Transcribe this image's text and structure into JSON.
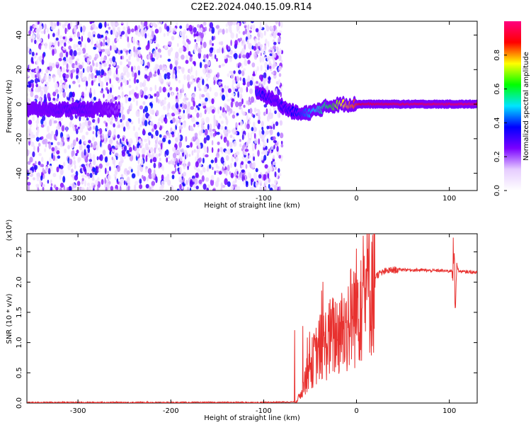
{
  "title": "C2E2.2024.040.15.09.R14",
  "chart_data": [
    {
      "type": "heatmap",
      "title": "",
      "xlabel": "Height of straight line (km)",
      "ylabel": "Frequency (Hz)",
      "xlim": [
        -355,
        130
      ],
      "ylim": [
        -50,
        48
      ],
      "xticks": [
        -300,
        -200,
        -100,
        0,
        100
      ],
      "yticks": [
        -40,
        -20,
        0,
        20,
        40
      ],
      "colorbar": {
        "label": "Normalized spectral amplitude",
        "range": [
          0,
          1
        ],
        "ticks": [
          "0.0",
          "0.2",
          "0.4",
          "0.6",
          "0.8"
        ],
        "colormap": [
          "#ffffff",
          "#e6ccff",
          "#7a00ff",
          "#0000ff",
          "#00e5ff",
          "#00ff00",
          "#ffff00",
          "#ff0000",
          "#ff0080"
        ]
      },
      "carrier": {
        "x": [
          -355,
          -300,
          -255,
          -105,
          -90,
          -75,
          -60,
          -45,
          -30,
          -15,
          0,
          10,
          130
        ],
        "frequency": [
          -3,
          -3,
          -3,
          6,
          3,
          -3,
          -6,
          -4,
          -1,
          0,
          0,
          0,
          0
        ],
        "amplitude": [
          0.25,
          0.3,
          0.2,
          0.4,
          0.3,
          0.35,
          0.4,
          0.5,
          0.6,
          0.75,
          0.85,
          0.9,
          0.95
        ]
      },
      "noise_region": [
        -355,
        -80
      ]
    },
    {
      "type": "line",
      "title": "",
      "xlabel": "Height of straight line (km)",
      "ylabel": "SNR (10 * v/v)",
      "scale_label": "(x10⁴)",
      "xlim": [
        -355,
        130
      ],
      "ylim": [
        0,
        2.8
      ],
      "xticks": [
        -300,
        -200,
        -100,
        0,
        100
      ],
      "yticks": [
        0.0,
        0.5,
        1.0,
        1.5,
        2.0,
        2.5
      ],
      "series": [
        {
          "color": "#e8312f",
          "x": [
            -355,
            -300,
            -200,
            -100,
            -65,
            -60,
            -55,
            -50,
            -45,
            -40,
            -35,
            -30,
            -25,
            -20,
            -15,
            -10,
            -5,
            0,
            5,
            10,
            15,
            20,
            25,
            30,
            35,
            40,
            50,
            60,
            70,
            80,
            90,
            100,
            103,
            105,
            106,
            108,
            110,
            115,
            120,
            130
          ],
          "y": [
            0.01,
            0.01,
            0.01,
            0.01,
            0.02,
            0.15,
            0.4,
            0.6,
            0.75,
            0.9,
            0.95,
            1.05,
            1.1,
            1.15,
            1.2,
            1.3,
            1.45,
            1.6,
            1.75,
            1.9,
            2.02,
            2.1,
            2.14,
            2.17,
            2.19,
            2.2,
            2.21,
            2.2,
            2.2,
            2.19,
            2.19,
            2.18,
            2.2,
            2.55,
            1.7,
            2.3,
            2.18,
            2.17,
            2.17,
            2.16
          ]
        }
      ]
    }
  ]
}
